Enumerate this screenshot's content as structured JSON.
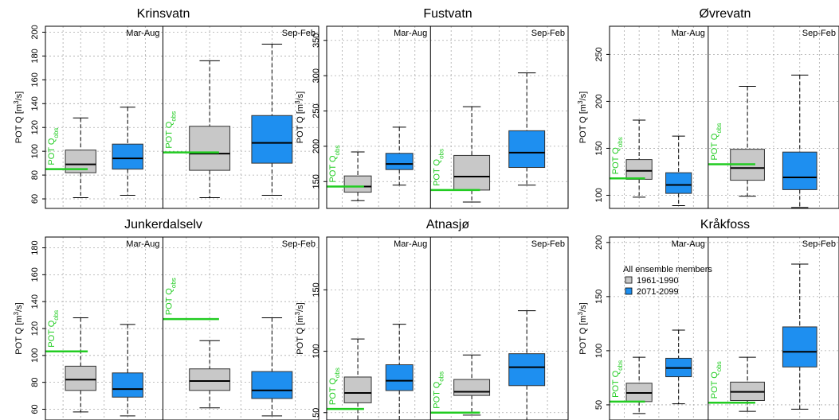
{
  "chart_data": {
    "type": "box",
    "colors": {
      "1961-1990": "#c8c8c8",
      "2071-2099": "#1e8ff0",
      "obs_line": "#22cc22"
    },
    "season_labels": [
      "Mar-Aug",
      "Sep-Feb"
    ],
    "obs_label_prefix": "POT Q",
    "obs_label_sub": "obs",
    "ylabel_prefix": "POT Q [m",
    "ylabel_sup": "3",
    "ylabel_suffix": "/s]",
    "legend": {
      "title": "All ensemble members",
      "entries": [
        "1961-1990",
        "2071-2099"
      ],
      "panel": "Kråkfoss",
      "placement": "top-left"
    },
    "panels": [
      {
        "title": "Krinsvatn",
        "ylim": [
          52,
          205
        ],
        "yticks": [
          60,
          80,
          100,
          120,
          140,
          160,
          180,
          200
        ],
        "seasons": [
          {
            "obs": 85,
            "boxes": [
              {
                "period": "1961-1990",
                "min": 61,
                "q1": 82,
                "median": 89,
                "q3": 101,
                "max": 128
              },
              {
                "period": "2071-2099",
                "min": 63,
                "q1": 85,
                "median": 94,
                "q3": 106,
                "max": 137
              }
            ]
          },
          {
            "obs": 99,
            "boxes": [
              {
                "period": "1961-1990",
                "min": 61,
                "q1": 84,
                "median": 98,
                "q3": 121,
                "max": 176
              },
              {
                "period": "2071-2099",
                "min": 63,
                "q1": 90,
                "median": 107,
                "q3": 130,
                "max": 190
              }
            ]
          }
        ]
      },
      {
        "title": "Fustvatn",
        "ylim": [
          112,
          370
        ],
        "yticks": [
          150,
          200,
          250,
          300,
          350
        ],
        "seasons": [
          {
            "obs": 143,
            "boxes": [
              {
                "period": "1961-1990",
                "min": 123,
                "q1": 135,
                "median": 143,
                "q3": 158,
                "max": 192
              },
              {
                "period": "2071-2099",
                "min": 145,
                "q1": 167,
                "median": 175,
                "q3": 190,
                "max": 227
              }
            ]
          },
          {
            "obs": 138,
            "boxes": [
              {
                "period": "1961-1990",
                "min": 121,
                "q1": 138,
                "median": 157,
                "q3": 187,
                "max": 256
              },
              {
                "period": "2071-2099",
                "min": 145,
                "q1": 170,
                "median": 191,
                "q3": 222,
                "max": 304
              }
            ]
          }
        ]
      },
      {
        "title": "Øvrevatn",
        "ylim": [
          86,
          280
        ],
        "yticks": [
          100,
          150,
          200,
          250
        ],
        "seasons": [
          {
            "obs": 118,
            "boxes": [
              {
                "period": "1961-1990",
                "min": 98,
                "q1": 117,
                "median": 126,
                "q3": 138,
                "max": 180
              },
              {
                "period": "2071-2099",
                "min": 89,
                "q1": 102,
                "median": 111,
                "q3": 124,
                "max": 163
              }
            ]
          },
          {
            "obs": 133,
            "boxes": [
              {
                "period": "1961-1990",
                "min": 99,
                "q1": 116,
                "median": 129,
                "q3": 149,
                "max": 216
              },
              {
                "period": "2071-2099",
                "min": 87,
                "q1": 106,
                "median": 119,
                "q3": 146,
                "max": 228
              }
            ]
          }
        ]
      },
      {
        "title": "Junkerdalselv",
        "ylim": [
          52,
          188
        ],
        "yticks": [
          60,
          80,
          100,
          120,
          140,
          160,
          180
        ],
        "seasons": [
          {
            "obs": 103,
            "boxes": [
              {
                "period": "1961-1990",
                "min": 58,
                "q1": 74,
                "median": 82,
                "q3": 92,
                "max": 128
              },
              {
                "period": "2071-2099",
                "min": 55,
                "q1": 69,
                "median": 75,
                "q3": 87,
                "max": 123
              }
            ]
          },
          {
            "obs": 127,
            "boxes": [
              {
                "period": "1961-1990",
                "min": 61,
                "q1": 74,
                "median": 81,
                "q3": 90,
                "max": 111
              },
              {
                "period": "2071-2099",
                "min": 55,
                "q1": 68,
                "median": 74,
                "q3": 88,
                "max": 128
              }
            ]
          }
        ]
      },
      {
        "title": "Atnasjø",
        "ylim": [
          44,
          193
        ],
        "yticks": [
          50,
          100,
          150
        ],
        "seasons": [
          {
            "obs": 53,
            "boxes": [
              {
                "period": "1961-1990",
                "min": 44,
                "q1": 58,
                "median": 66,
                "q3": 79,
                "max": 110
              },
              {
                "period": "2071-2099",
                "min": 43,
                "q1": 68,
                "median": 76,
                "q3": 89,
                "max": 122
              }
            ]
          },
          {
            "obs": 50,
            "boxes": [
              {
                "period": "1961-1990",
                "min": 48,
                "q1": 64,
                "median": 67,
                "q3": 77,
                "max": 97
              },
              {
                "period": "2071-2099",
                "min": 43,
                "q1": 72,
                "median": 87,
                "q3": 98,
                "max": 133
              }
            ]
          }
        ]
      },
      {
        "title": "Kråkfoss",
        "ylim": [
          36,
          205
        ],
        "yticks": [
          50,
          100,
          150,
          200
        ],
        "seasons": [
          {
            "obs": 53,
            "boxes": [
              {
                "period": "1961-1990",
                "min": 42,
                "q1": 53,
                "median": 61,
                "q3": 70,
                "max": 94
              },
              {
                "period": "2071-2099",
                "min": 51,
                "q1": 76,
                "median": 84,
                "q3": 93,
                "max": 119
              }
            ]
          },
          {
            "obs": 52,
            "boxes": [
              {
                "period": "1961-1990",
                "min": 44,
                "q1": 54,
                "median": 62,
                "q3": 71,
                "max": 94
              },
              {
                "period": "2071-2099",
                "min": 46,
                "q1": 85,
                "median": 99,
                "q3": 122,
                "max": 180
              }
            ]
          }
        ]
      }
    ]
  }
}
